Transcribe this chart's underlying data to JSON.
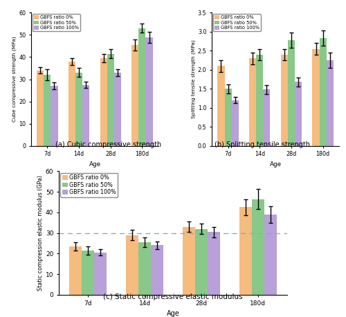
{
  "ages": [
    "7d",
    "14d",
    "28d",
    "180d"
  ],
  "legend_labels": [
    "GBFS ratio 0%",
    "GBFS ratio 50%",
    "GBFS ratio 100%"
  ],
  "colors": [
    "#f5bb7f",
    "#88c888",
    "#b8a0d8"
  ],
  "bar_width": 0.22,
  "chart_a": {
    "title": "(a) Cubic compressive strength",
    "ylabel": "Cube compressive strength (MPa)",
    "ylim": [
      0,
      60
    ],
    "yticks": [
      0,
      10,
      20,
      30,
      40,
      50,
      60
    ],
    "values": [
      [
        34.0,
        38.0,
        39.5,
        45.5
      ],
      [
        32.0,
        33.0,
        41.5,
        53.0
      ],
      [
        27.0,
        27.5,
        33.0,
        49.0
      ]
    ],
    "errors": [
      [
        1.5,
        1.5,
        2.0,
        2.5
      ],
      [
        2.5,
        2.0,
        2.0,
        2.0
      ],
      [
        1.5,
        1.5,
        1.5,
        2.5
      ]
    ]
  },
  "chart_b": {
    "title": "(b) Splitting tensile strength",
    "ylabel": "Splitting tensile strength (MPa)",
    "ylim": [
      0,
      3.5
    ],
    "yticks": [
      0.0,
      0.5,
      1.0,
      1.5,
      2.0,
      2.5,
      3.0,
      3.5
    ],
    "values": [
      [
        2.1,
        2.3,
        2.4,
        2.55
      ],
      [
        1.5,
        2.4,
        2.78,
        2.83
      ],
      [
        1.2,
        1.48,
        1.68,
        2.25
      ]
    ],
    "errors": [
      [
        0.15,
        0.15,
        0.15,
        0.15
      ],
      [
        0.12,
        0.15,
        0.2,
        0.2
      ],
      [
        0.08,
        0.12,
        0.12,
        0.2
      ]
    ]
  },
  "chart_c": {
    "title": "(c) Static compressive elastic modulus",
    "ylabel": "Static compression elastic modulus (GPa)",
    "ylim": [
      0,
      60
    ],
    "yticks": [
      0,
      10,
      20,
      30,
      40,
      50,
      60
    ],
    "hline": 30,
    "values": [
      [
        23.5,
        29.0,
        33.0,
        42.5
      ],
      [
        21.5,
        25.5,
        32.0,
        46.5
      ],
      [
        20.5,
        24.0,
        30.5,
        39.0
      ]
    ],
    "errors": [
      [
        2.0,
        2.5,
        2.5,
        4.0
      ],
      [
        2.0,
        2.5,
        2.5,
        5.0
      ],
      [
        1.5,
        2.0,
        2.5,
        4.0
      ]
    ]
  },
  "xlabel": "Age",
  "elinewidth": 1.0,
  "capsize": 2.5,
  "capthick": 1.0,
  "edgecolor": "none",
  "ecolor": "black"
}
